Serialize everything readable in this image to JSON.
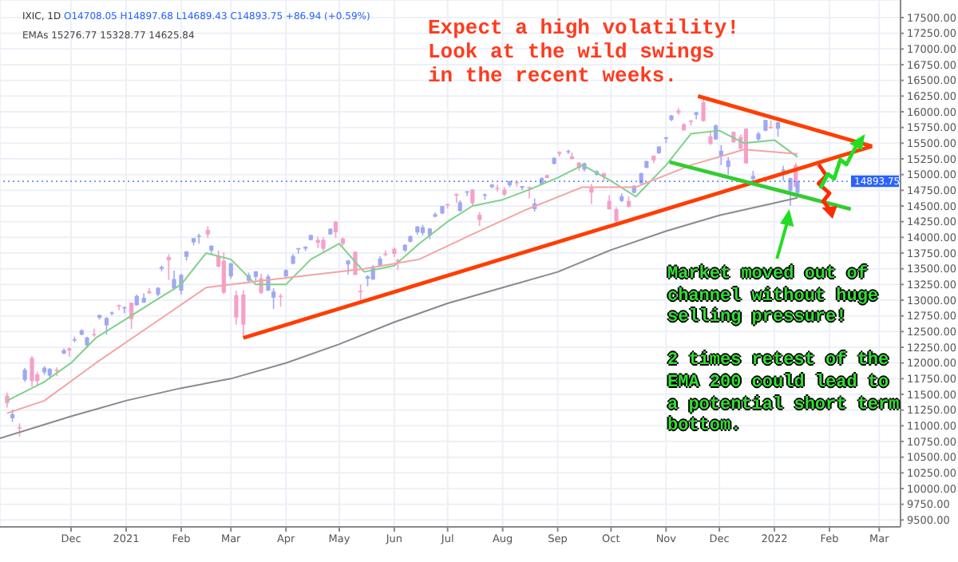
{
  "chart_data": {
    "type": "candlestick",
    "title": "IXIC, 1D",
    "subtitle": "O14708.05 H14897.68 L14689.43 C14893.75 +86.94 (+0.59%)",
    "annotations": [
      "EMAs 15276.77 15328.77 14625.84",
      "Expect a high volatility! Look at the wild swings in the recent weeks.",
      "Market moved out of channel without huge selling pressure!\n\n2 times retest of the EMA 200 could lead to a potential short term bottom."
    ],
    "x": [
      "2020-10-26",
      "2020-10-29",
      "2020-11-02",
      "2020-11-05",
      "2020-11-09",
      "2020-11-12",
      "2020-11-16",
      "2020-11-19",
      "2020-11-23",
      "2020-11-27",
      "2020-11-30",
      "2020-12-03",
      "2020-12-07",
      "2020-12-10",
      "2020-12-14",
      "2020-12-17",
      "2020-12-21",
      "2020-12-24",
      "2020-12-28",
      "2020-12-31",
      "2021-01-04",
      "2021-01-07",
      "2021-01-11",
      "2021-01-14",
      "2021-01-19",
      "2021-01-21",
      "2021-01-25",
      "2021-01-28",
      "2021-02-01",
      "2021-02-04",
      "2021-02-08",
      "2021-02-11",
      "2021-02-16",
      "2021-02-18",
      "2021-02-22",
      "2021-02-25",
      "2021-03-01",
      "2021-03-04",
      "2021-03-08",
      "2021-03-11",
      "2021-03-15",
      "2021-03-18",
      "2021-03-22",
      "2021-03-25",
      "2021-03-29",
      "2021-04-01",
      "2021-04-05",
      "2021-04-08",
      "2021-04-12",
      "2021-04-15",
      "2021-04-19",
      "2021-04-22",
      "2021-04-26",
      "2021-04-29",
      "2021-05-03",
      "2021-05-06",
      "2021-05-10",
      "2021-05-13",
      "2021-05-17",
      "2021-05-20",
      "2021-05-24",
      "2021-05-27",
      "2021-06-01",
      "2021-06-03",
      "2021-06-07",
      "2021-06-10",
      "2021-06-14",
      "2021-06-17",
      "2021-06-21",
      "2021-06-24",
      "2021-06-28",
      "2021-07-01",
      "2021-07-06",
      "2021-07-08",
      "2021-07-12",
      "2021-07-15",
      "2021-07-19",
      "2021-07-22",
      "2021-07-26",
      "2021-07-29",
      "2021-08-02",
      "2021-08-05",
      "2021-08-09",
      "2021-08-12",
      "2021-08-16",
      "2021-08-19",
      "2021-08-23",
      "2021-08-26",
      "2021-08-30",
      "2021-09-02",
      "2021-09-07",
      "2021-09-09",
      "2021-09-13",
      "2021-09-16",
      "2021-09-20",
      "2021-09-23",
      "2021-09-27",
      "2021-09-30",
      "2021-10-04",
      "2021-10-07",
      "2021-10-11",
      "2021-10-14",
      "2021-10-18",
      "2021-10-21",
      "2021-10-25",
      "2021-10-28",
      "2021-11-01",
      "2021-11-04",
      "2021-11-08",
      "2021-11-11",
      "2021-11-15",
      "2021-11-18",
      "2021-11-22",
      "2021-11-26",
      "2021-11-29",
      "2021-12-02",
      "2021-12-06",
      "2021-12-09",
      "2021-12-13",
      "2021-12-16",
      "2021-12-20",
      "2021-12-23",
      "2021-12-27",
      "2021-12-30",
      "2022-01-03",
      "2022-01-06",
      "2022-01-10",
      "2022-01-13",
      "2022-01-14"
    ],
    "ohlc": [
      [
        11480,
        11530,
        11290,
        11358
      ],
      [
        11120,
        11260,
        11060,
        11185
      ],
      [
        10980,
        11040,
        10830,
        10957
      ],
      [
        11730,
        11920,
        11700,
        11891
      ],
      [
        12080,
        12110,
        11620,
        11713
      ],
      [
        11820,
        11860,
        11650,
        11710
      ],
      [
        11850,
        11950,
        11810,
        11925
      ],
      [
        11800,
        11920,
        11750,
        11905
      ],
      [
        11890,
        11930,
        11790,
        11880
      ],
      [
        12150,
        12230,
        12140,
        12205
      ],
      [
        12230,
        12250,
        12100,
        12198
      ],
      [
        12360,
        12420,
        12330,
        12377
      ],
      [
        12450,
        12540,
        12440,
        12519
      ],
      [
        12280,
        12420,
        12240,
        12405
      ],
      [
        12460,
        12550,
        12420,
        12440
      ],
      [
        12720,
        12770,
        12690,
        12764
      ],
      [
        12600,
        12730,
        12450,
        12717
      ],
      [
        12800,
        12820,
        12760,
        12804
      ],
      [
        12920,
        12930,
        12840,
        12899
      ],
      [
        12880,
        12900,
        12790,
        12888
      ],
      [
        12960,
        12960,
        12540,
        12698
      ],
      [
        12920,
        13090,
        12910,
        13067
      ],
      [
        12960,
        13110,
        12960,
        13036
      ],
      [
        13140,
        13190,
        13100,
        13112
      ],
      [
        13090,
        13210,
        13060,
        13197
      ],
      [
        13500,
        13550,
        13460,
        13530
      ],
      [
        13690,
        13730,
        13320,
        13635
      ],
      [
        13190,
        13470,
        13160,
        13337
      ],
      [
        13150,
        13420,
        13090,
        13403
      ],
      [
        13690,
        13780,
        13630,
        13777
      ],
      [
        13920,
        13990,
        13870,
        13988
      ],
      [
        14010,
        14060,
        13900,
        14026
      ],
      [
        14120,
        14180,
        13990,
        14047
      ],
      [
        13790,
        13880,
        13720,
        13865
      ],
      [
        13700,
        13790,
        13520,
        13533
      ],
      [
        13630,
        13760,
        13100,
        13119
      ],
      [
        13380,
        13590,
        13340,
        13589
      ],
      [
        13080,
        13150,
        12610,
        12723
      ],
      [
        13090,
        13160,
        12400,
        12609
      ],
      [
        13310,
        13440,
        13270,
        13398
      ],
      [
        13370,
        13460,
        13290,
        13460
      ],
      [
        13350,
        13420,
        13100,
        13116
      ],
      [
        13150,
        13410,
        13150,
        13377
      ],
      [
        13040,
        13190,
        12860,
        13138
      ],
      [
        13070,
        13100,
        12900,
        13059
      ],
      [
        13380,
        13490,
        13360,
        13480
      ],
      [
        13580,
        13730,
        13570,
        13705
      ],
      [
        13810,
        13830,
        13740,
        13829
      ],
      [
        13820,
        13860,
        13780,
        13850
      ],
      [
        13960,
        14040,
        13950,
        14038
      ],
      [
        13960,
        14010,
        13830,
        13914
      ],
      [
        13960,
        14000,
        13780,
        13818
      ],
      [
        14050,
        14140,
        14040,
        14138
      ],
      [
        14250,
        14260,
        13990,
        14082
      ],
      [
        13980,
        14000,
        13860,
        13895
      ],
      [
        13570,
        13640,
        13410,
        13633
      ],
      [
        13770,
        13780,
        13400,
        13402
      ],
      [
        13150,
        13250,
        12990,
        13124
      ],
      [
        13340,
        13400,
        13220,
        13379
      ],
      [
        13330,
        13560,
        13320,
        13535
      ],
      [
        13540,
        13700,
        13530,
        13661
      ],
      [
        13740,
        13790,
        13700,
        13736
      ],
      [
        13820,
        13840,
        13690,
        13736
      ],
      [
        13640,
        13660,
        13480,
        13614
      ],
      [
        13790,
        13890,
        13770,
        13881
      ],
      [
        13930,
        14030,
        13920,
        14020
      ],
      [
        14080,
        14180,
        14040,
        14174
      ],
      [
        14070,
        14200,
        14030,
        14161
      ],
      [
        14030,
        14150,
        13970,
        14141
      ],
      [
        14330,
        14400,
        14320,
        14369
      ],
      [
        14380,
        14500,
        14370,
        14500
      ],
      [
        14530,
        14540,
        14460,
        14523
      ],
      [
        14690,
        14700,
        14550,
        14664
      ],
      [
        14420,
        14590,
        14410,
        14559
      ],
      [
        14720,
        14740,
        14660,
        14733
      ],
      [
        14760,
        14770,
        14500,
        14543
      ],
      [
        14360,
        14400,
        14180,
        14275
      ],
      [
        14680,
        14700,
        14600,
        14684
      ],
      [
        14800,
        14850,
        14780,
        14840
      ],
      [
        14790,
        14840,
        14730,
        14778
      ],
      [
        14760,
        14800,
        14660,
        14681
      ],
      [
        14830,
        14900,
        14800,
        14895
      ],
      [
        14880,
        14890,
        14810,
        14860
      ],
      [
        14790,
        14820,
        14750,
        14816
      ],
      [
        14800,
        14810,
        14620,
        14793
      ],
      [
        14450,
        14620,
        14410,
        14541
      ],
      [
        14840,
        14960,
        14840,
        14942
      ],
      [
        14990,
        15000,
        14940,
        14945
      ],
      [
        15170,
        15280,
        15160,
        15265
      ],
      [
        15360,
        15370,
        15290,
        15331
      ],
      [
        15370,
        15400,
        15330,
        15374
      ],
      [
        15290,
        15350,
        15240,
        15248
      ],
      [
        15190,
        15200,
        15060,
        15105
      ],
      [
        15080,
        15190,
        15050,
        15181
      ],
      [
        14790,
        14850,
        14530,
        14713
      ],
      [
        15000,
        15070,
        14980,
        15052
      ],
      [
        15020,
        15030,
        14900,
        14969
      ],
      [
        14580,
        14670,
        14440,
        14448
      ],
      [
        14450,
        14480,
        14180,
        14255
      ],
      [
        14580,
        14700,
        14560,
        14654
      ],
      [
        14580,
        14650,
        14480,
        14486
      ],
      [
        14710,
        14830,
        14700,
        14823
      ],
      [
        14860,
        15030,
        14840,
        15021
      ],
      [
        15110,
        15220,
        15100,
        15216
      ],
      [
        15300,
        15310,
        15180,
        15226
      ],
      [
        15340,
        15450,
        15330,
        15448
      ],
      [
        15570,
        15600,
        15500,
        15595
      ],
      [
        15870,
        15950,
        15850,
        15940
      ],
      [
        16020,
        16060,
        15950,
        15982
      ],
      [
        15800,
        15820,
        15700,
        15704
      ],
      [
        15860,
        15870,
        15780,
        15853
      ],
      [
        15950,
        16000,
        15880,
        15993
      ],
      [
        16150,
        16210,
        15840,
        15854
      ],
      [
        15610,
        15700,
        15470,
        15491
      ],
      [
        15560,
        15800,
        15550,
        15782
      ],
      [
        15300,
        15470,
        15150,
        15381
      ],
      [
        15120,
        15280,
        15000,
        15225
      ],
      [
        15680,
        15690,
        15500,
        15517
      ],
      [
        15600,
        15640,
        15380,
        15413
      ],
      [
        15730,
        15740,
        15170,
        15180
      ],
      [
        14930,
        15060,
        14860,
        14980
      ],
      [
        15560,
        15680,
        15540,
        15653
      ],
      [
        15700,
        15871,
        15690,
        15871
      ],
      [
        15760,
        15860,
        15730,
        15741
      ],
      [
        15730,
        15840,
        15600,
        15833
      ],
      [
        15050,
        15140,
        14900,
        15080
      ],
      [
        14740,
        14950,
        14500,
        14943
      ],
      [
        15150,
        15190,
        14800,
        14806
      ],
      [
        14708.05,
        14897.68,
        14689.43,
        14893.75
      ]
    ],
    "colors": [
      "#f5a0c8",
      "#9fa8f2",
      "#f5a0c8",
      "#9fa8f2",
      "#f5a0c8",
      "#f5a0c8",
      "#9fa8f2",
      "#9fa8f2",
      "#f5a0c8",
      "#9fa8f2",
      "#f5a0c8",
      "#9fa8f2",
      "#9fa8f2",
      "#9fa8f2",
      "#f5a0c8",
      "#9fa8f2",
      "#9fa8f2",
      "#9fa8f2",
      "#f5a0c8",
      "#9fa8f2",
      "#f5a0c8",
      "#9fa8f2",
      "#9fa8f2",
      "#f5a0c8",
      "#9fa8f2",
      "#9fa8f2",
      "#f5a0c8",
      "#9fa8f2",
      "#9fa8f2",
      "#9fa8f2",
      "#9fa8f2",
      "#9fa8f2",
      "#f5a0c8",
      "#9fa8f2",
      "#f5a0c8",
      "#f5a0c8",
      "#9fa8f2",
      "#f5a0c8",
      "#f5a0c8",
      "#9fa8f2",
      "#9fa8f2",
      "#f5a0c8",
      "#9fa8f2",
      "#9fa8f2",
      "#f5a0c8",
      "#9fa8f2",
      "#9fa8f2",
      "#9fa8f2",
      "#9fa8f2",
      "#9fa8f2",
      "#f5a0c8",
      "#f5a0c8",
      "#9fa8f2",
      "#f5a0c8",
      "#f5a0c8",
      "#9fa8f2",
      "#f5a0c8",
      "#f5a0c8",
      "#9fa8f2",
      "#9fa8f2",
      "#9fa8f2",
      "#f5a0c8",
      "#f5a0c8",
      "#f5a0c8",
      "#9fa8f2",
      "#9fa8f2",
      "#9fa8f2",
      "#9fa8f2",
      "#9fa8f2",
      "#9fa8f2",
      "#9fa8f2",
      "#f5a0c8",
      "#f5a0c8",
      "#9fa8f2",
      "#9fa8f2",
      "#f5a0c8",
      "#f5a0c8",
      "#9fa8f2",
      "#9fa8f2",
      "#f5a0c8",
      "#f5a0c8",
      "#9fa8f2",
      "#f5a0c8",
      "#9fa8f2",
      "#f5a0c8",
      "#9fa8f2",
      "#9fa8f2",
      "#f5a0c8",
      "#9fa8f2",
      "#f5a0c8",
      "#9fa8f2",
      "#f5a0c8",
      "#f5a0c8",
      "#9fa8f2",
      "#f5a0c8",
      "#9fa8f2",
      "#f5a0c8",
      "#f5a0c8",
      "#f5a0c8",
      "#9fa8f2",
      "#f5a0c8",
      "#9fa8f2",
      "#9fa8f2",
      "#9fa8f2",
      "#f5a0c8",
      "#9fa8f2",
      "#9fa8f2",
      "#9fa8f2",
      "#f5a0c8",
      "#f5a0c8",
      "#f5a0c8",
      "#9fa8f2",
      "#f5a0c8",
      "#f5a0c8",
      "#9fa8f2",
      "#9fa8f2",
      "#9fa8f2",
      "#f5a0c8",
      "#f5a0c8",
      "#f5a0c8",
      "#9fa8f2",
      "#9fa8f2",
      "#9fa8f2",
      "#f5a0c8",
      "#9fa8f2",
      "#9fa8f2",
      "#9fa8f2",
      "#f5a0c8",
      "#9fa8f2"
    ],
    "series": [
      {
        "type": "line",
        "color": "#7fd18a",
        "x": [
          "2020-10-26",
          "2020-11-16",
          "2020-12-01",
          "2020-12-15",
          "2021-01-01",
          "2021-01-15",
          "2021-02-01",
          "2021-02-15",
          "2021-03-01",
          "2021-03-15",
          "2021-04-01",
          "2021-04-15",
          "2021-05-01",
          "2021-05-15",
          "2021-06-01",
          "2021-06-15",
          "2021-07-01",
          "2021-07-15",
          "2021-08-01",
          "2021-08-15",
          "2021-09-01",
          "2021-09-15",
          "2021-10-01",
          "2021-10-15",
          "2021-11-01",
          "2021-11-15",
          "2021-12-01",
          "2021-12-15",
          "2022-01-01",
          "2022-01-14"
        ],
        "values": [
          11400,
          11700,
          12000,
          12400,
          12700,
          12950,
          13250,
          13750,
          13650,
          13250,
          13250,
          13650,
          13900,
          13450,
          13550,
          13900,
          14250,
          14500,
          14600,
          14750,
          14950,
          15150,
          14900,
          14650,
          15150,
          15650,
          15700,
          15500,
          15550,
          15280
        ]
      },
      {
        "type": "line",
        "color": "#f4a4a4",
        "x": [
          "2020-10-26",
          "2020-11-16",
          "2020-12-15",
          "2021-01-15",
          "2021-02-15",
          "2021-03-15",
          "2021-04-15",
          "2021-05-15",
          "2021-06-15",
          "2021-07-15",
          "2021-08-15",
          "2021-09-15",
          "2021-10-15",
          "2021-11-15",
          "2021-12-15",
          "2022-01-14"
        ],
        "values": [
          11200,
          11400,
          12000,
          12600,
          13200,
          13300,
          13400,
          13500,
          13650,
          14050,
          14450,
          14800,
          14800,
          15150,
          15400,
          15330
        ]
      },
      {
        "type": "line",
        "color": "#8a8a8a",
        "x": [
          "2020-10-22",
          "2020-12-01",
          "2021-01-01",
          "2021-02-01",
          "2021-03-01",
          "2021-04-01",
          "2021-05-01",
          "2021-06-01",
          "2021-07-01",
          "2021-08-01",
          "2021-09-01",
          "2021-10-01",
          "2021-11-01",
          "2021-12-01",
          "2022-01-14"
        ],
        "values": [
          10800,
          11150,
          11400,
          11600,
          11750,
          12000,
          12300,
          12650,
          12950,
          13200,
          13450,
          13800,
          14100,
          14350,
          14630
        ]
      },
      {
        "type": "line",
        "color": "#ff3d00",
        "x": [
          "2021-03-08",
          "2022-02-25"
        ],
        "values": [
          12400,
          15450
        ]
      },
      {
        "type": "line",
        "color": "#ff3d00",
        "x": [
          "2021-11-19",
          "2022-02-25"
        ],
        "values": [
          16250,
          15450
        ]
      },
      {
        "type": "line",
        "color": "#33cc33",
        "x": [
          "2021-11-03",
          "2022-02-13"
        ],
        "values": [
          15200,
          14450
        ]
      }
    ],
    "ref_lines": [
      {
        "axis": "y",
        "value": 14893.75,
        "label": "14893.75",
        "color": "#2962ff",
        "line_style": "dotted"
      }
    ],
    "xlim": [
      "2020-10-22",
      "2022-03-13"
    ],
    "xticks": [
      {
        "value": "2020-12-01",
        "label": "Dec"
      },
      {
        "value": "2021-01-01",
        "label": "2021"
      },
      {
        "value": "2021-02-01",
        "label": "Feb"
      },
      {
        "value": "2021-03-01",
        "label": "Mar"
      },
      {
        "value": "2021-04-01",
        "label": "Apr"
      },
      {
        "value": "2021-05-01",
        "label": "May"
      },
      {
        "value": "2021-06-01",
        "label": "Jun"
      },
      {
        "value": "2021-07-01",
        "label": "Jul"
      },
      {
        "value": "2021-08-01",
        "label": "Aug"
      },
      {
        "value": "2021-09-01",
        "label": "Sep"
      },
      {
        "value": "2021-10-01",
        "label": "Oct"
      },
      {
        "value": "2021-11-01",
        "label": "Nov"
      },
      {
        "value": "2021-12-01",
        "label": "Dec"
      },
      {
        "value": "2022-01-01",
        "label": "2022"
      },
      {
        "value": "2022-02-01",
        "label": "Feb"
      },
      {
        "value": "2022-03-01",
        "label": "Mar"
      }
    ],
    "ylim": [
      9390,
      17780
    ],
    "yticks": [
      {
        "value": 9500,
        "label": "9500.00"
      },
      {
        "value": 9750,
        "label": "9750.00"
      },
      {
        "value": 10000,
        "label": "10000.00"
      },
      {
        "value": 10250,
        "label": "10250.00"
      },
      {
        "value": 10500,
        "label": "10500.00"
      },
      {
        "value": 10750,
        "label": "10750.00"
      },
      {
        "value": 11000,
        "label": "11000.00"
      },
      {
        "value": 11250,
        "label": "11250.00"
      },
      {
        "value": 11500,
        "label": "11500.00"
      },
      {
        "value": 11750,
        "label": "11750.00"
      },
      {
        "value": 12000,
        "label": "12000.00"
      },
      {
        "value": 12250,
        "label": "12250.00"
      },
      {
        "value": 12500,
        "label": "12500.00"
      },
      {
        "value": 12750,
        "label": "12750.00"
      },
      {
        "value": 13000,
        "label": "13000.00"
      },
      {
        "value": 13250,
        "label": "13250.00"
      },
      {
        "value": 13500,
        "label": "13500.00"
      },
      {
        "value": 13750,
        "label": "13750.00"
      },
      {
        "value": 14000,
        "label": "14000.00"
      },
      {
        "value": 14250,
        "label": "14250.00"
      },
      {
        "value": 14500,
        "label": "14500.00"
      },
      {
        "value": 14750,
        "label": "14750.00"
      },
      {
        "value": 15000,
        "label": "15000.00"
      },
      {
        "value": 15250,
        "label": "15250.00"
      },
      {
        "value": 15500,
        "label": "15500.00"
      },
      {
        "value": 15750,
        "label": "15750.00"
      },
      {
        "value": 16000,
        "label": "16000.00"
      },
      {
        "value": 16250,
        "label": "16250.00"
      },
      {
        "value": 16500,
        "label": "16500.00"
      },
      {
        "value": 16750,
        "label": "16750.00"
      },
      {
        "value": 17000,
        "label": "17000.00"
      },
      {
        "value": 17250,
        "label": "17250.00"
      },
      {
        "value": 17500,
        "label": "17500.00"
      }
    ],
    "grid": true
  }
}
